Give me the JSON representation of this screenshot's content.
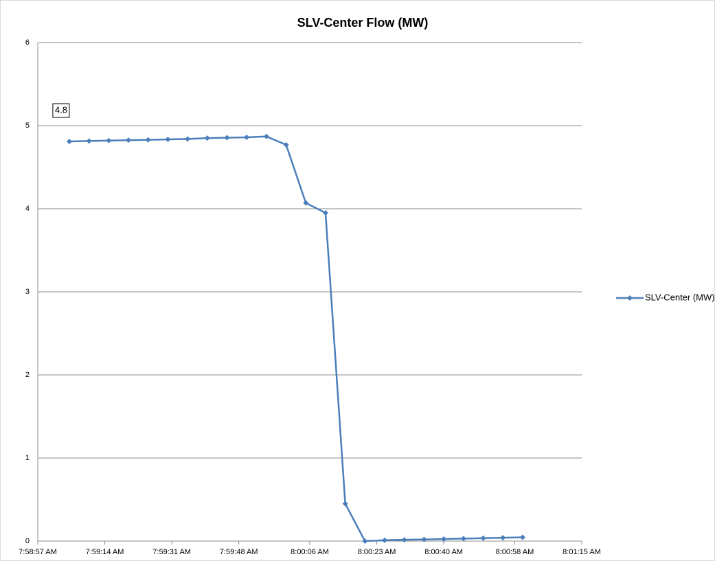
{
  "chart_data": {
    "type": "line",
    "title": "SLV-Center Flow (MW)",
    "x": [
      "7:59:05 AM",
      "7:59:10 AM",
      "7:59:15 AM",
      "7:59:20 AM",
      "7:59:25 AM",
      "7:59:30 AM",
      "7:59:35 AM",
      "7:59:40 AM",
      "7:59:45 AM",
      "7:59:50 AM",
      "7:59:55 AM",
      "8:00:00 AM",
      "8:00:05 AM",
      "8:00:10 AM",
      "8:00:15 AM",
      "8:00:20 AM",
      "8:00:25 AM",
      "8:00:30 AM",
      "8:00:35 AM",
      "8:00:40 AM",
      "8:00:45 AM",
      "8:00:50 AM",
      "8:00:55 AM",
      "8:01:00 AM"
    ],
    "series": [
      {
        "name": "SLV-Center (MW)",
        "color": "#4a7ebb",
        "values": [
          4.81,
          4.815,
          4.82,
          4.825,
          4.83,
          4.835,
          4.84,
          4.85,
          4.855,
          4.86,
          4.87,
          4.77,
          4.07,
          3.95,
          0.45,
          0.0,
          0.01,
          0.015,
          0.02,
          0.025,
          0.03,
          0.035,
          0.04,
          0.045
        ],
        "value_labels": [
          "4.8",
          null,
          null,
          null,
          null,
          null,
          null,
          null,
          null,
          null,
          null,
          null,
          null,
          null,
          null,
          null,
          null,
          null,
          null,
          null,
          null,
          null,
          null,
          null
        ]
      }
    ],
    "xlim": [
      "7:58:57 AM",
      "8:01:15 AM"
    ],
    "xticks": [
      "7:58:57 AM",
      "7:59:14 AM",
      "7:59:31 AM",
      "7:59:48 AM",
      "8:00:06 AM",
      "8:00:23 AM",
      "8:00:40 AM",
      "8:00:58 AM",
      "8:01:15 AM"
    ],
    "ylim": [
      0,
      6
    ],
    "yticks": [
      0,
      1,
      2,
      3,
      4,
      5,
      6
    ],
    "grid": true,
    "legend": "right"
  }
}
